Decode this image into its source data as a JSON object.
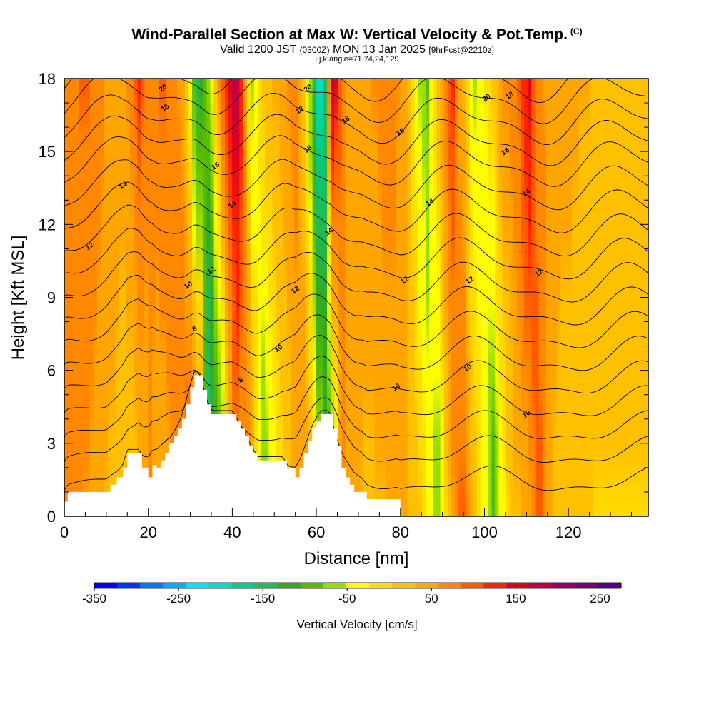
{
  "title": {
    "main": "Wind-Parallel Section at Max W: Vertical Velocity & Pot.Temp.",
    "main_mark": "(C)",
    "valid_prefix": "Valid 1200 JST",
    "valid_utc": "(0300Z)",
    "valid_date": "MON 13 Jan 2025",
    "forecast": "[9hrFcst@2210z]",
    "indices": "i,j,k,angle=71,74,24,129"
  },
  "chart_data": {
    "type": "heatmap",
    "xlabel": "Distance [nm]",
    "ylabel": "Height [Kft MSL]",
    "xlim": [
      0,
      139
    ],
    "ylim": [
      0,
      18
    ],
    "x_ticks": [
      0,
      20,
      40,
      60,
      80,
      100,
      120
    ],
    "y_ticks": [
      0,
      3,
      6,
      9,
      12,
      15,
      18
    ],
    "colorbar": {
      "label": "Vertical Velocity [cm/s]",
      "min": -350,
      "max": 275,
      "tick_values": [
        -350,
        -250,
        -150,
        -50,
        50,
        150,
        250
      ],
      "tick_labels": [
        "-350",
        "-250",
        "-150",
        "-50",
        "50",
        "150",
        "250"
      ],
      "colors": [
        "#0000ff",
        "#0033ff",
        "#0077ff",
        "#00aaff",
        "#00e5ff",
        "#00e0c0",
        "#00cc88",
        "#22bb55",
        "#33aa22",
        "#55bb00",
        "#99dd00",
        "#ffff00",
        "#ffdd00",
        "#ffc000",
        "#ffa500",
        "#ff8800",
        "#ff5a00",
        "#ff2200",
        "#dd0022",
        "#bb0044",
        "#990066",
        "#770077",
        "#550088"
      ]
    },
    "terrain_kft": [
      [
        0,
        0.6
      ],
      [
        0.8,
        1
      ],
      [
        10,
        1
      ],
      [
        11,
        1.3
      ],
      [
        12.5,
        1.6
      ],
      [
        14,
        2
      ],
      [
        15,
        2.6
      ],
      [
        18,
        2.6
      ],
      [
        18.5,
        2
      ],
      [
        20,
        1.6
      ],
      [
        21,
        2.1
      ],
      [
        22,
        2
      ],
      [
        23,
        2.3
      ],
      [
        24,
        2.6
      ],
      [
        25,
        3
      ],
      [
        26,
        3.3
      ],
      [
        27,
        3.6
      ],
      [
        28,
        4
      ],
      [
        29,
        4.6
      ],
      [
        30,
        5.3
      ],
      [
        31,
        5.8
      ],
      [
        32,
        5.8
      ],
      [
        33,
        5.2
      ],
      [
        34,
        4.6
      ],
      [
        35,
        4.2
      ],
      [
        40,
        4.2
      ],
      [
        41,
        3.9
      ],
      [
        42,
        3.6
      ],
      [
        43,
        3.3
      ],
      [
        44,
        2.9
      ],
      [
        45,
        2.6
      ],
      [
        46,
        2.3
      ],
      [
        52,
        2.3
      ],
      [
        53,
        2
      ],
      [
        55,
        1.6
      ],
      [
        56,
        2
      ],
      [
        57,
        2.6
      ],
      [
        58,
        3.1
      ],
      [
        59,
        3.6
      ],
      [
        60,
        3.9
      ],
      [
        61,
        4.2
      ],
      [
        63,
        4.2
      ],
      [
        64,
        3.6
      ],
      [
        65,
        2.9
      ],
      [
        66,
        2
      ],
      [
        67,
        1.6
      ],
      [
        68,
        1.3
      ],
      [
        69,
        1
      ],
      [
        71,
        1
      ],
      [
        72,
        0.7
      ],
      [
        79,
        0.7
      ],
      [
        80,
        0.5
      ]
    ],
    "vertical_velocity_cm_s": {
      "x": [
        0,
        4,
        8,
        12,
        16,
        19,
        20.5,
        22,
        26,
        29.5,
        31,
        32.5,
        34,
        37.5,
        40,
        42,
        43.5,
        45,
        47,
        50,
        54,
        58,
        61,
        63,
        64.5,
        66,
        69,
        72,
        76,
        80,
        84,
        87,
        89,
        92,
        95,
        97,
        100,
        102,
        104,
        107,
        110,
        113,
        115,
        118,
        122,
        128,
        134,
        139
      ],
      "surface": [
        60,
        60,
        40,
        20,
        0,
        40,
        80,
        20,
        60,
        110,
        130,
        90,
        -200,
        -120,
        40,
        60,
        100,
        60,
        -100,
        -40,
        20,
        60,
        -40,
        -150,
        -100,
        60,
        40,
        20,
        30,
        40,
        20,
        -40,
        -80,
        40,
        100,
        40,
        -40,
        -100,
        -40,
        20,
        40,
        100,
        40,
        20,
        10,
        0,
        0,
        0
      ],
      "top": [
        60,
        80,
        90,
        60,
        40,
        80,
        120,
        60,
        90,
        60,
        40,
        -40,
        -150,
        -60,
        100,
        150,
        200,
        100,
        -80,
        20,
        40,
        80,
        -60,
        -220,
        -180,
        200,
        60,
        40,
        60,
        80,
        40,
        -60,
        -80,
        40,
        120,
        40,
        -60,
        -40,
        0,
        60,
        80,
        150,
        80,
        40,
        40,
        30,
        30,
        20
      ]
    },
    "theta_contours": [
      {
        "level": 8,
        "label_pos": [
          31,
          7.7
        ]
      },
      {
        "level": 8,
        "label_pos": [
          42,
          5.6
        ]
      },
      {
        "level": 10,
        "label_pos": [
          29.5,
          9.5
        ]
      },
      {
        "level": 10,
        "label_pos": [
          51,
          6.9
        ]
      },
      {
        "level": 10,
        "label_pos": [
          79,
          5.3
        ]
      },
      {
        "level": 10,
        "label_pos": [
          96,
          6.1
        ]
      },
      {
        "level": 10,
        "label_pos": [
          110,
          4.2
        ]
      },
      {
        "level": 12,
        "label_pos": [
          6,
          11.1
        ]
      },
      {
        "level": 12,
        "label_pos": [
          35,
          10.1
        ]
      },
      {
        "level": 12,
        "label_pos": [
          55,
          9.3
        ]
      },
      {
        "level": 12,
        "label_pos": [
          81,
          9.7
        ]
      },
      {
        "level": 12,
        "label_pos": [
          96.5,
          9.7
        ]
      },
      {
        "level": 12,
        "label_pos": [
          113,
          10
        ]
      },
      {
        "level": 14,
        "label_pos": [
          14,
          13.6
        ]
      },
      {
        "level": 14,
        "label_pos": [
          40,
          12.8
        ]
      },
      {
        "level": 14,
        "label_pos": [
          63,
          11.7
        ]
      },
      {
        "level": 14,
        "label_pos": [
          87,
          12.9
        ]
      },
      {
        "level": 14,
        "label_pos": [
          110,
          13.3
        ]
      },
      {
        "level": 16,
        "label_pos": [
          24,
          16.8
        ]
      },
      {
        "level": 16,
        "label_pos": [
          36,
          14.4
        ]
      },
      {
        "level": 16,
        "label_pos": [
          58,
          15.1
        ]
      },
      {
        "level": 16,
        "label_pos": [
          67,
          16.3
        ]
      },
      {
        "level": 16,
        "label_pos": [
          80,
          15.8
        ]
      },
      {
        "level": 16,
        "label_pos": [
          105,
          15
        ]
      },
      {
        "level": 18,
        "label_pos": [
          56,
          16.7
        ]
      },
      {
        "level": 18,
        "label_pos": [
          106,
          17.3
        ]
      },
      {
        "level": 20,
        "label_pos": [
          23.5,
          17.6
        ]
      },
      {
        "level": 20,
        "label_pos": [
          58,
          17.6
        ]
      },
      {
        "level": 20,
        "label_pos": [
          100.5,
          17.2
        ]
      }
    ]
  }
}
